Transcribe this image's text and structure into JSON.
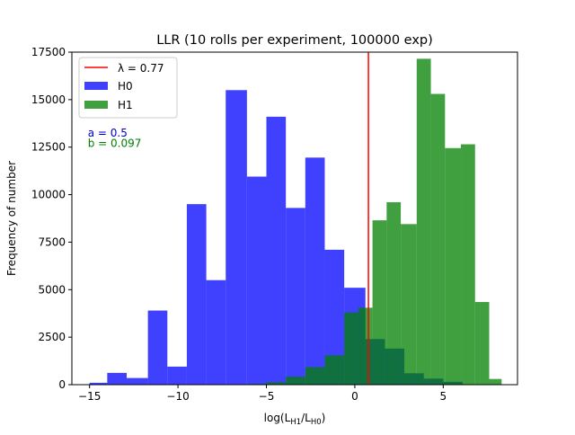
{
  "chart_data": {
    "type": "bar",
    "title": "LLR (10 rolls per experiment, 100000 exp)",
    "xlabel_parts": {
      "pre": "log(L",
      "sub1": "H1",
      "mid": "/L",
      "sub2": "H0",
      "post": ")"
    },
    "ylabel": "Frequency of number",
    "xlim": [
      -16,
      9.2
    ],
    "ylim": [
      0,
      17500
    ],
    "x_ticks": [
      {
        "value": -15,
        "label": "−15"
      },
      {
        "value": -10,
        "label": "−10"
      },
      {
        "value": -5,
        "label": "−5"
      },
      {
        "value": 0,
        "label": "0"
      },
      {
        "value": 5,
        "label": "5"
      }
    ],
    "y_ticks": [
      {
        "value": 0,
        "label": "0"
      },
      {
        "value": 2500,
        "label": "2500"
      },
      {
        "value": 5000,
        "label": "5000"
      },
      {
        "value": 7500,
        "label": "7500"
      },
      {
        "value": 10000,
        "label": "10000"
      },
      {
        "value": 12500,
        "label": "12500"
      },
      {
        "value": 15000,
        "label": "15000"
      },
      {
        "value": 17500,
        "label": "17500"
      }
    ],
    "grid": false,
    "legend_position": "top-left",
    "threshold": {
      "name": "λ = 0.77",
      "value": 0.77,
      "color": "#ff0000"
    },
    "series": [
      {
        "name": "H0",
        "color": "#0000ff",
        "opacity": 0.75,
        "bins": [
          {
            "x0": -15.0,
            "x1": -14.0,
            "count": 100
          },
          {
            "x0": -14.0,
            "x1": -12.9,
            "count": 620
          },
          {
            "x0": -12.9,
            "x1": -11.7,
            "count": 350
          },
          {
            "x0": -11.7,
            "x1": -10.6,
            "count": 3900
          },
          {
            "x0": -10.6,
            "x1": -9.5,
            "count": 950
          },
          {
            "x0": -9.5,
            "x1": -8.4,
            "count": 9500
          },
          {
            "x0": -8.4,
            "x1": -7.3,
            "count": 5500
          },
          {
            "x0": -7.3,
            "x1": -6.1,
            "count": 15500
          },
          {
            "x0": -6.1,
            "x1": -5.0,
            "count": 10950
          },
          {
            "x0": -5.0,
            "x1": -3.9,
            "count": 14100
          },
          {
            "x0": -3.9,
            "x1": -2.8,
            "count": 9300
          },
          {
            "x0": -2.8,
            "x1": -1.7,
            "count": 11950
          },
          {
            "x0": -1.7,
            "x1": -0.6,
            "count": 7100
          },
          {
            "x0": -0.6,
            "x1": 0.6,
            "count": 5100
          },
          {
            "x0": 0.6,
            "x1": 1.7,
            "count": 2400
          },
          {
            "x0": 1.7,
            "x1": 2.8,
            "count": 1900
          },
          {
            "x0": 2.8,
            "x1": 3.9,
            "count": 600
          },
          {
            "x0": 3.9,
            "x1": 5.0,
            "count": 320
          },
          {
            "x0": 5.0,
            "x1": 6.1,
            "count": 150
          }
        ]
      },
      {
        "name": "H1",
        "color": "#008000",
        "opacity": 0.75,
        "bins": [
          {
            "x0": -6.0,
            "x1": -5.0,
            "count": 40
          },
          {
            "x0": -5.0,
            "x1": -3.9,
            "count": 130
          },
          {
            "x0": -3.9,
            "x1": -2.8,
            "count": 420
          },
          {
            "x0": -2.8,
            "x1": -1.7,
            "count": 920
          },
          {
            "x0": -1.7,
            "x1": -0.6,
            "count": 1550
          },
          {
            "x0": -0.6,
            "x1": 0.2,
            "count": 3800
          },
          {
            "x0": 0.2,
            "x1": 1.0,
            "count": 4050
          },
          {
            "x0": 1.0,
            "x1": 1.8,
            "count": 8650
          },
          {
            "x0": 1.8,
            "x1": 2.6,
            "count": 9600
          },
          {
            "x0": 2.6,
            "x1": 3.5,
            "count": 8450
          },
          {
            "x0": 3.5,
            "x1": 4.3,
            "count": 17150
          },
          {
            "x0": 4.3,
            "x1": 5.1,
            "count": 15300
          },
          {
            "x0": 5.1,
            "x1": 6.0,
            "count": 12450
          },
          {
            "x0": 6.0,
            "x1": 6.8,
            "count": 12650
          },
          {
            "x0": 6.8,
            "x1": 7.6,
            "count": 4350
          },
          {
            "x0": 7.6,
            "x1": 8.3,
            "count": 300
          }
        ]
      }
    ],
    "annotations": [
      {
        "text": "a = 0.5",
        "x": -15.1,
        "y": 13050,
        "color": "#0000cd"
      },
      {
        "text": "b = 0.097",
        "x": -15.1,
        "y": 12500,
        "color": "#008000"
      }
    ]
  }
}
